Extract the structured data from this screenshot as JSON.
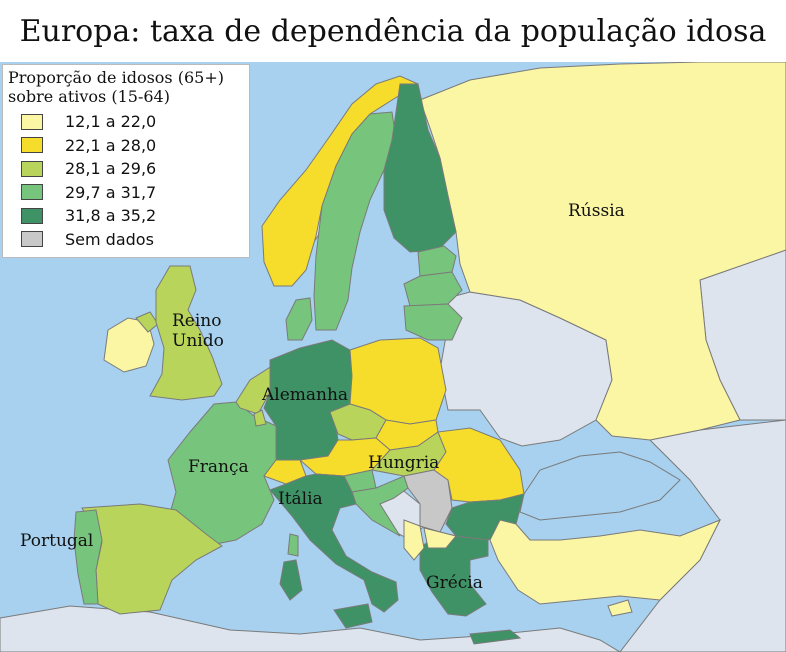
{
  "title": "Europa: taxa de dependência da população idosa",
  "legend": {
    "title_line1": "Proporção de idosos (65+)",
    "title_line2": "sobre ativos (15-64)",
    "items": [
      {
        "label": "12,1 a 22,0",
        "color": "#fbf6a4"
      },
      {
        "label": "22,1 a 28,0",
        "color": "#f7dd2b"
      },
      {
        "label": "28,1 a 29,6",
        "color": "#b9d45a"
      },
      {
        "label": "29,7 a 31,7",
        "color": "#77c57c"
      },
      {
        "label": "31,8 a 35,2",
        "color": "#3e9265"
      },
      {
        "label": "Sem dados",
        "color": "#c8c8c8"
      }
    ]
  },
  "colors": {
    "sea": "#a7d1ee",
    "non_eu": "#dde4ee",
    "border": "#7a7a7a"
  },
  "labels": {
    "russia": "Rússia",
    "uk_line1": "Reino",
    "uk_line2": "Unido",
    "germany": "Alemanha",
    "france": "França",
    "hungary": "Hungria",
    "italy": "Itália",
    "portugal": "Portugal",
    "greece": "Grécia"
  }
}
